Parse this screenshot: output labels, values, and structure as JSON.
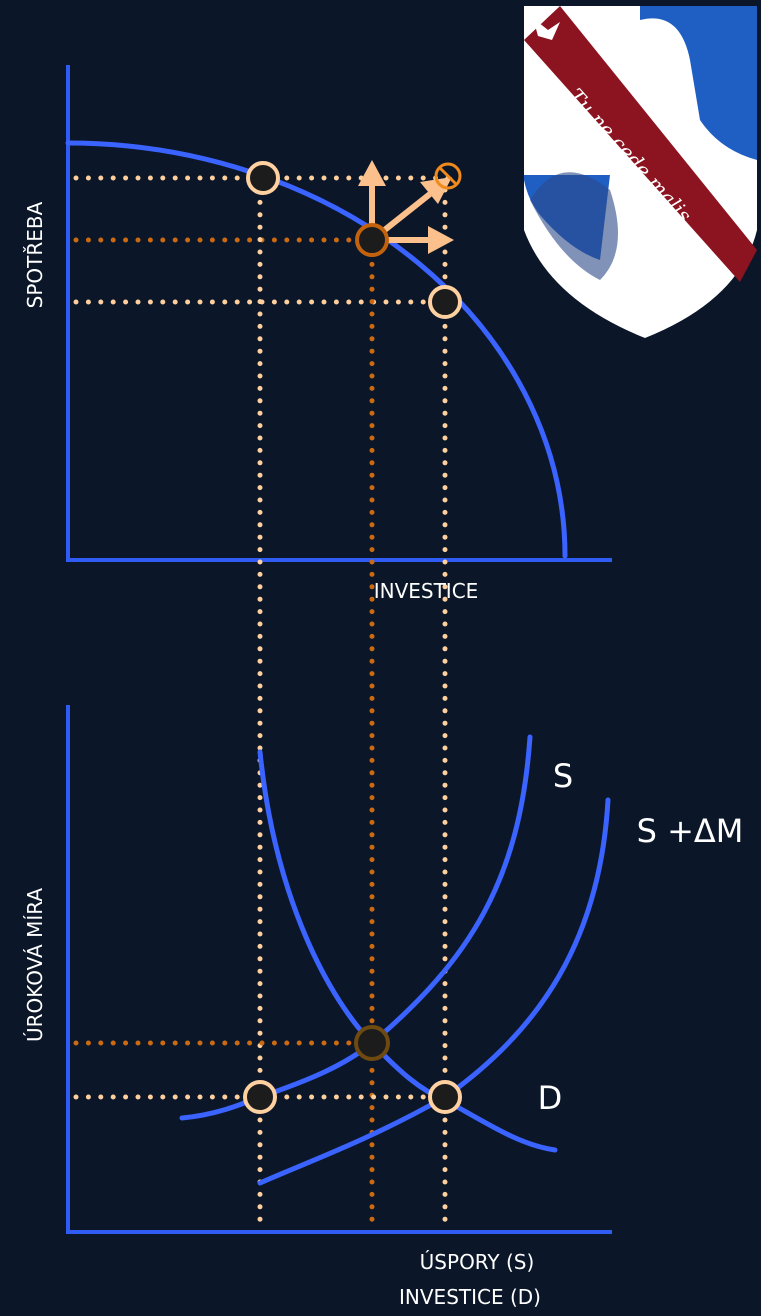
{
  "axes": {
    "top": {
      "y_label": "SPOTŘEBA",
      "x_label": "INVESTICE"
    },
    "bottom": {
      "y_label": "ÚROKOVÁ MÍRA",
      "x_label_lines": [
        "ÚSPORY (S)",
        "INVESTICE (D)"
      ]
    }
  },
  "curves": {
    "supply": "S",
    "supply_shifted": "S +ΔM",
    "demand": "D"
  },
  "logo": {
    "motto": "Tu ne cede malis"
  }
}
